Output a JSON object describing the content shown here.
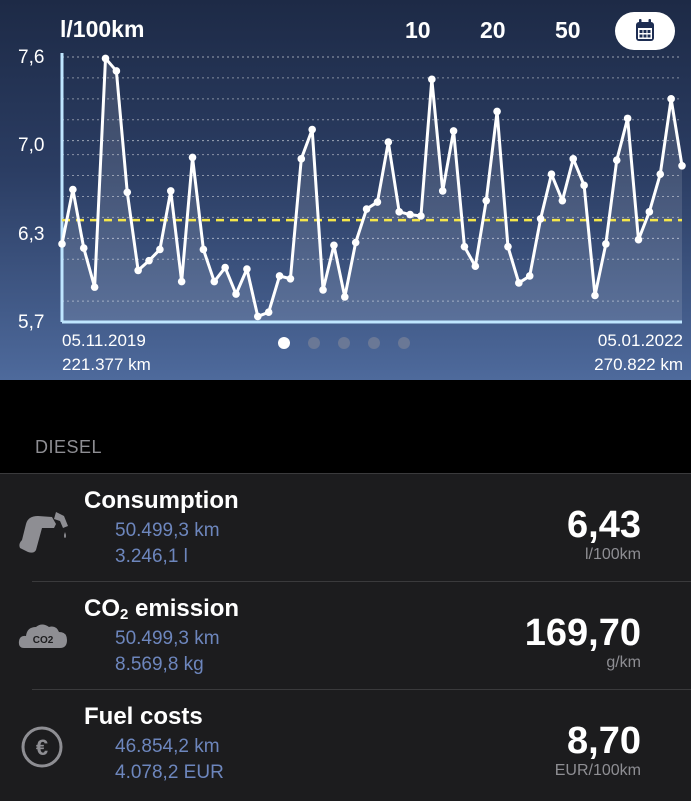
{
  "chart": {
    "unit_label": "l/100km",
    "range_buttons": [
      "10",
      "20",
      "50"
    ],
    "calendar_icon": "calendar-icon",
    "start_date": "05.11.2019",
    "start_km": "221.377 km",
    "end_date": "05.01.2022",
    "end_km": "270.822 km",
    "page_dots": 5,
    "active_page": 0
  },
  "chart_data": {
    "type": "line",
    "ylabel": "l/100km",
    "ylim": [
      5.7,
      7.6
    ],
    "yticks": [
      "5,7",
      "6,3",
      "7,0",
      "7,6"
    ],
    "ytick_values": [
      5.7,
      6.3,
      7.0,
      7.6
    ],
    "minor_grid_values": [
      5.85,
      6.15,
      6.45,
      6.6,
      6.75,
      6.9,
      7.15,
      7.3,
      7.45
    ],
    "average": 6.43,
    "series": [
      {
        "values": [
          6.26,
          6.65,
          6.23,
          5.95,
          7.59,
          7.5,
          6.63,
          6.07,
          6.14,
          6.22,
          6.64,
          5.99,
          6.88,
          6.22,
          5.99,
          6.09,
          5.9,
          6.08,
          5.74,
          5.77,
          6.03,
          6.01,
          6.87,
          7.08,
          5.93,
          6.25,
          5.88,
          6.27,
          6.51,
          6.56,
          6.99,
          6.49,
          6.47,
          6.46,
          7.44,
          6.64,
          7.07,
          6.24,
          6.1,
          6.57,
          7.21,
          6.24,
          5.98,
          6.03,
          6.44,
          6.76,
          6.57,
          6.87,
          6.68,
          5.89,
          6.26,
          6.86,
          7.16,
          6.29,
          6.49,
          6.76,
          7.3,
          6.82
        ]
      }
    ],
    "colors": {
      "line": "#ffffff",
      "average": "#f5e64a",
      "axis": "#bfe6ff"
    }
  },
  "section": {
    "title": "DIESEL"
  },
  "rows": [
    {
      "icon": "fuel-pump-icon",
      "title": "Consumption",
      "sub1": "50.499,3 km",
      "sub2": "3.246,1 l",
      "value": "6,43",
      "unit": "l/100km"
    },
    {
      "icon": "co2-cloud-icon",
      "title_main": "CO",
      "title_sub": "2",
      "title_rest": " emission",
      "icon_text": "CO2",
      "sub1": "50.499,3 km",
      "sub2": "8.569,8 kg",
      "value": "169,70",
      "unit": "g/km"
    },
    {
      "icon": "euro-icon",
      "icon_text": "€",
      "title": "Fuel costs",
      "sub1": "46.854,2 km",
      "sub2": "4.078,2 EUR",
      "value": "8,70",
      "unit": "EUR/100km"
    }
  ]
}
